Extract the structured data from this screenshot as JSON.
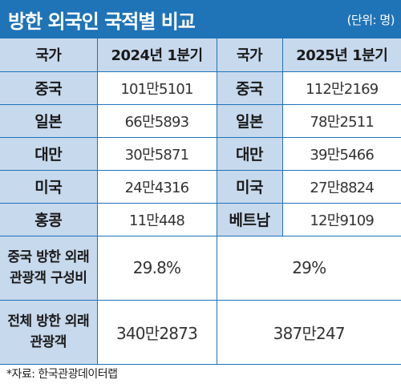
{
  "header": {
    "title": "방한 외국인 국적별 비교",
    "unit": "(단위: 명)"
  },
  "table": {
    "col_headers": [
      "국가",
      "2024년 1분기",
      "국가",
      "2025년 1분기"
    ],
    "rows": [
      {
        "c2024": "중국",
        "v2024": "101만5101",
        "c2025": "중국",
        "v2025": "112만2169"
      },
      {
        "c2024": "일본",
        "v2024": "66만5893",
        "c2025": "일본",
        "v2025": "78만2511"
      },
      {
        "c2024": "대만",
        "v2024": "30만5871",
        "c2025": "대만",
        "v2025": "39만5466"
      },
      {
        "c2024": "미국",
        "v2024": "24만4316",
        "c2025": "미국",
        "v2025": "27만8824"
      },
      {
        "c2024": "홍콩",
        "v2024": "11만448",
        "c2025": "베트남",
        "v2025": "12만9109"
      }
    ],
    "china_share": {
      "label_line1": "중국 방한 외래",
      "label_line2": "관광객 구성비",
      "v2024": "29.8%",
      "v2025": "29%"
    },
    "total": {
      "label_line1": "전체 방한 외래",
      "label_line2": "관광객",
      "v2024": "340만2873",
      "v2025": "387만247"
    }
  },
  "source": "*자료: 한국관광데이터랩",
  "colors": {
    "header_bg": "#1f73b7",
    "label_bg": "#c7d9ec",
    "border": "#1f73b7"
  }
}
